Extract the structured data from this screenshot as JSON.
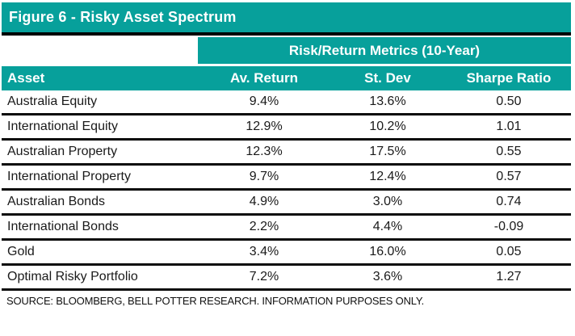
{
  "figure": {
    "title": "Figure 6 - Risky Asset Spectrum",
    "metrics_header": "Risk/Return Metrics (10-Year)",
    "source_note": "SOURCE: BLOOMBERG, BELL POTTER RESEARCH. INFORMATION PURPOSES ONLY."
  },
  "colors": {
    "teal": "#07A09B",
    "header_text": "#FFFFFF",
    "body_text": "#1A1A1A",
    "rule": "#000000"
  },
  "table": {
    "columns": [
      "Asset",
      "Av. Return",
      "St. Dev",
      "Sharpe Ratio"
    ],
    "rows": [
      {
        "asset": "Australia Equity",
        "av_return": "9.4%",
        "st_dev": "13.6%",
        "sharpe": "0.50"
      },
      {
        "asset": "International Equity",
        "av_return": "12.9%",
        "st_dev": "10.2%",
        "sharpe": "1.01"
      },
      {
        "asset": "Australian Property",
        "av_return": "12.3%",
        "st_dev": "17.5%",
        "sharpe": "0.55"
      },
      {
        "asset": "International Property",
        "av_return": "9.7%",
        "st_dev": "12.4%",
        "sharpe": "0.57"
      },
      {
        "asset": "Australian Bonds",
        "av_return": "4.9%",
        "st_dev": "3.0%",
        "sharpe": "0.74"
      },
      {
        "asset": "International Bonds",
        "av_return": "2.2%",
        "st_dev": "4.4%",
        "sharpe": "-0.09"
      },
      {
        "asset": "Gold",
        "av_return": "3.4%",
        "st_dev": "16.0%",
        "sharpe": "0.05"
      },
      {
        "asset": "Optimal Risky Portfolio",
        "av_return": "7.2%",
        "st_dev": "3.6%",
        "sharpe": "1.27"
      }
    ]
  },
  "chart_data": {
    "type": "table",
    "title": "Figure 6 - Risky Asset Spectrum",
    "group_header": "Risk/Return Metrics (10-Year)",
    "columns": [
      "Asset",
      "Av. Return",
      "St. Dev",
      "Sharpe Ratio"
    ],
    "rows": [
      [
        "Australia Equity",
        "9.4%",
        "13.6%",
        "0.50"
      ],
      [
        "International Equity",
        "12.9%",
        "10.2%",
        "1.01"
      ],
      [
        "Australian Property",
        "12.3%",
        "17.5%",
        "0.55"
      ],
      [
        "International Property",
        "9.7%",
        "12.4%",
        "0.57"
      ],
      [
        "Australian Bonds",
        "4.9%",
        "3.0%",
        "0.74"
      ],
      [
        "International Bonds",
        "2.2%",
        "4.4%",
        "-0.09"
      ],
      [
        "Gold",
        "3.4%",
        "16.0%",
        "0.05"
      ],
      [
        "Optimal Risky Portfolio",
        "7.2%",
        "3.6%",
        "1.27"
      ]
    ],
    "source": "SOURCE: BLOOMBERG, BELL POTTER RESEARCH. INFORMATION PURPOSES ONLY."
  }
}
